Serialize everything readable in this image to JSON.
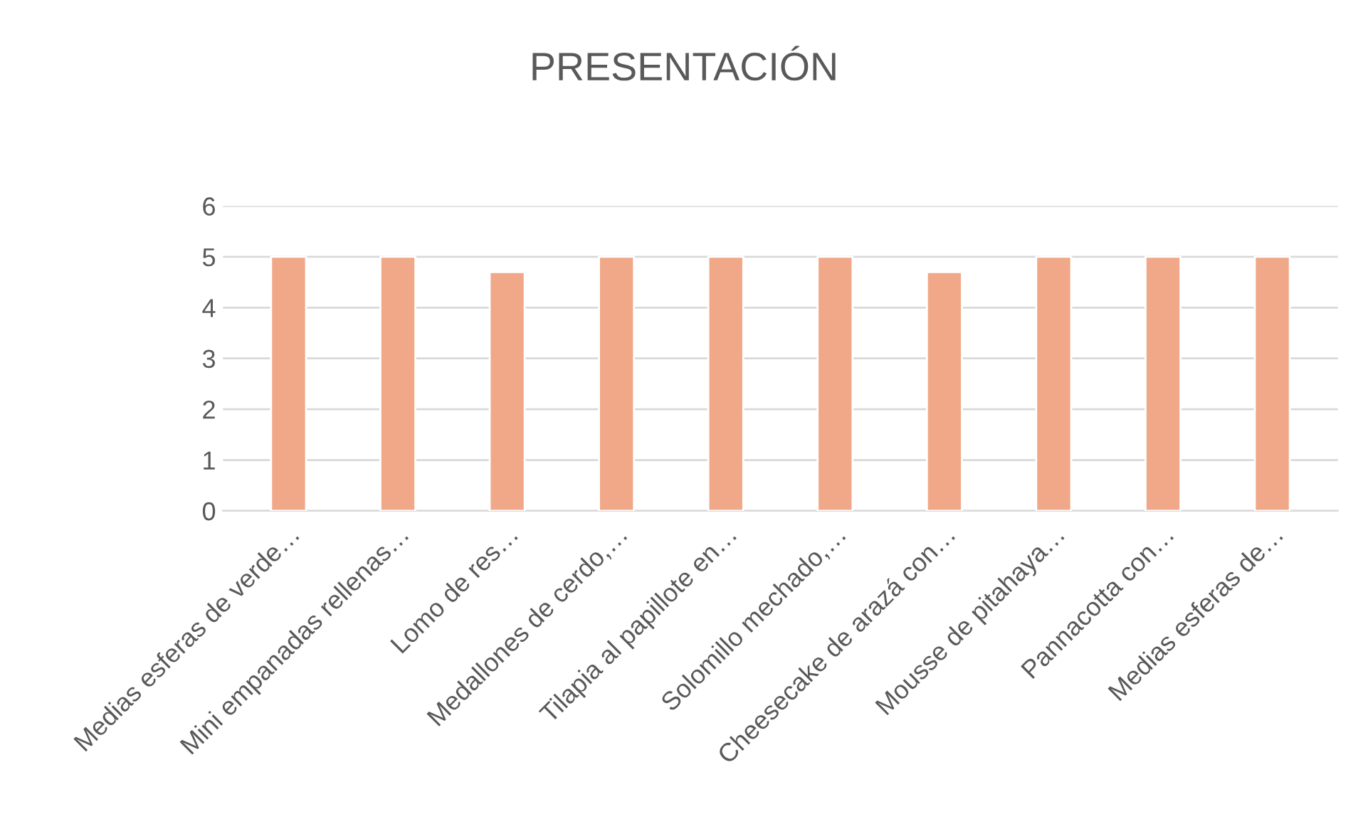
{
  "chart_data": {
    "type": "bar",
    "title": "PRESENTACIÓN",
    "categories": [
      "Medias esferas de verde…",
      "Mini empanadas rellenas…",
      "Lomo de res…",
      "Medallones de cerdo,…",
      "Tilapia al papillote en…",
      "Solomillo mechado,…",
      "Cheesecake de arazá con…",
      "Mousse de pitahaya…",
      "Pannacotta con…",
      "Medias esferas de…"
    ],
    "values": [
      5,
      5,
      4.7,
      5,
      5,
      5,
      4.7,
      5,
      5,
      5
    ],
    "color": "#f0a888",
    "ylim": [
      0,
      6
    ],
    "yticks": [
      0,
      1,
      2,
      3,
      4,
      5,
      6
    ],
    "grid": "y",
    "legend": false
  }
}
